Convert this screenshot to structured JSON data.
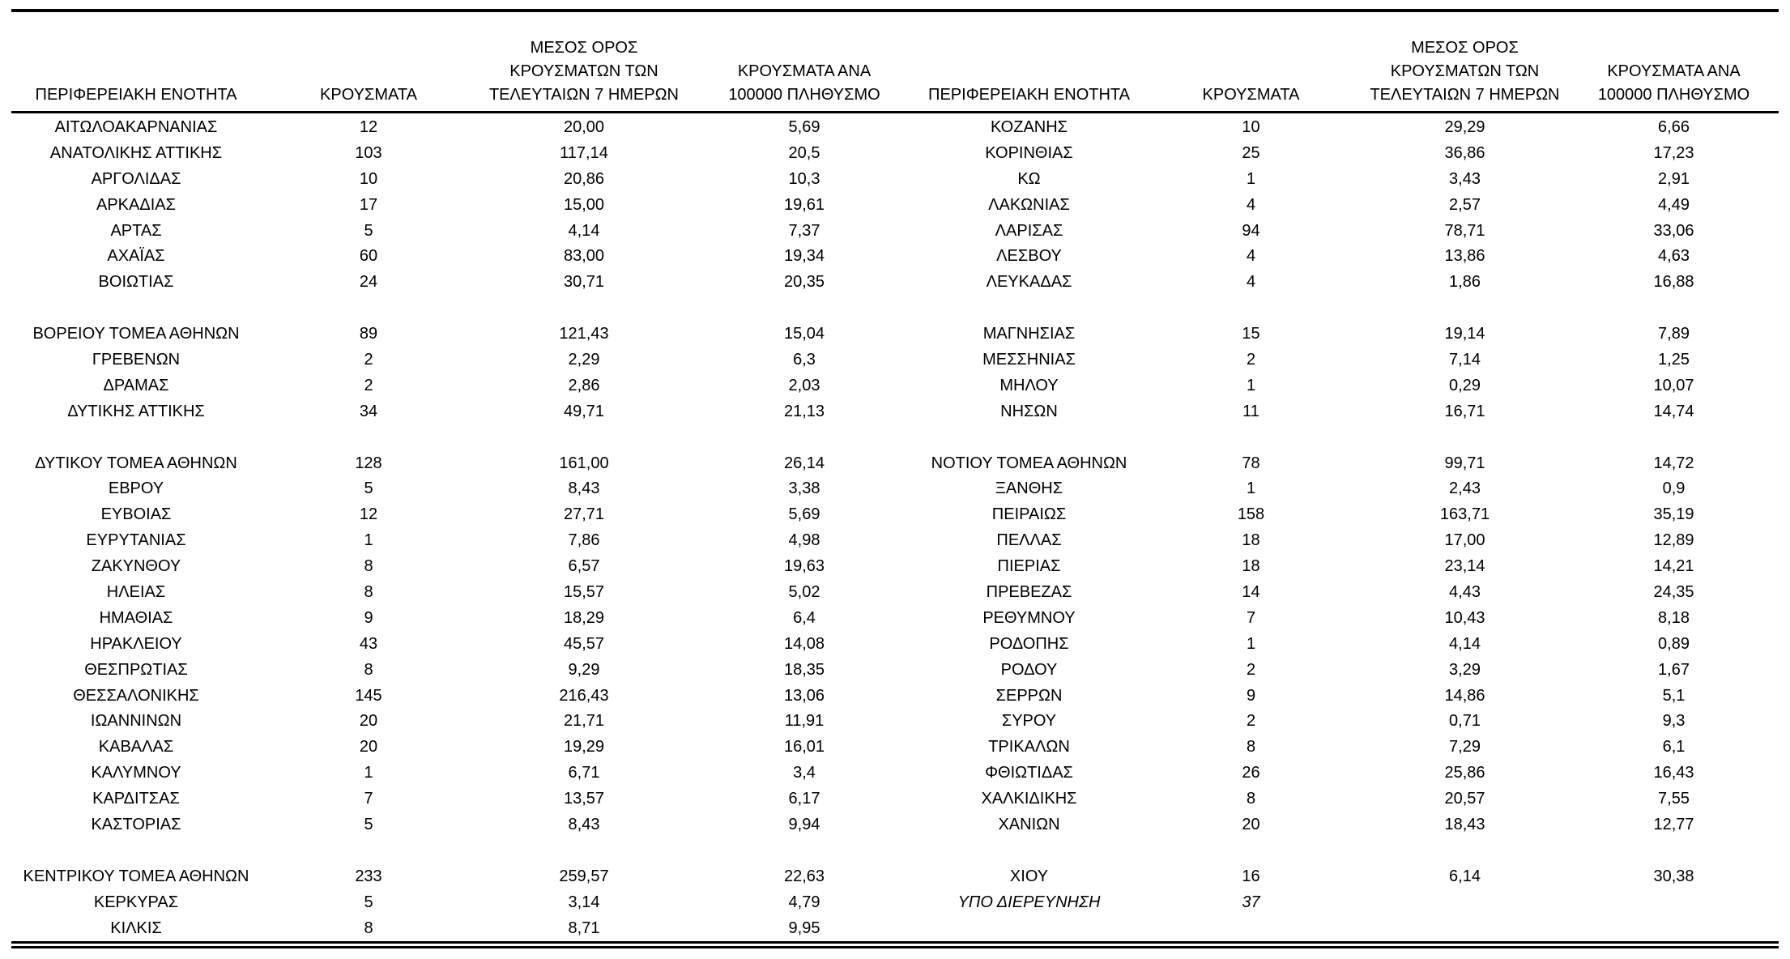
{
  "page": {
    "background_color": "#ffffff",
    "text_color": "#000000"
  },
  "table": {
    "headers": {
      "region": "ΠΕΡΙΦΕΡΕΙΑΚΗ ΕΝΟΤΗΤΑ",
      "cases": "ΚΡΟΥΣΜΑΤΑ",
      "avg7": [
        "ΜΕΣΟΣ ΟΡΟΣ",
        "ΚΡΟΥΣΜΑΤΩΝ ΤΩΝ",
        "ΤΕΛΕΥΤΑΙΩΝ 7 ΗΜΕΡΩΝ"
      ],
      "per100k": [
        "ΚΡΟΥΣΜΑΤΑ ΑΝΑ",
        "100000 ΠΛΗΘΥΣΜΟ"
      ]
    },
    "rows": [
      {
        "left": {
          "region": "ΑΙΤΩΛΟΑΚΑΡΝΑΝΙΑΣ",
          "cases": "12",
          "avg7": "20,00",
          "per100k": "5,69"
        },
        "right": {
          "region": "ΚΟΖΑΝΗΣ",
          "cases": "10",
          "avg7": "29,29",
          "per100k": "6,66"
        }
      },
      {
        "left": {
          "region": "ΑΝΑΤΟΛΙΚΗΣ ΑΤΤΙΚΗΣ",
          "cases": "103",
          "avg7": "117,14",
          "per100k": "20,5"
        },
        "right": {
          "region": "ΚΟΡΙΝΘΙΑΣ",
          "cases": "25",
          "avg7": "36,86",
          "per100k": "17,23"
        }
      },
      {
        "left": {
          "region": "ΑΡΓΟΛΙΔΑΣ",
          "cases": "10",
          "avg7": "20,86",
          "per100k": "10,3"
        },
        "right": {
          "region": "ΚΩ",
          "cases": "1",
          "avg7": "3,43",
          "per100k": "2,91"
        }
      },
      {
        "left": {
          "region": "ΑΡΚΑΔΙΑΣ",
          "cases": "17",
          "avg7": "15,00",
          "per100k": "19,61"
        },
        "right": {
          "region": "ΛΑΚΩΝΙΑΣ",
          "cases": "4",
          "avg7": "2,57",
          "per100k": "4,49"
        }
      },
      {
        "left": {
          "region": "ΑΡΤΑΣ",
          "cases": "5",
          "avg7": "4,14",
          "per100k": "7,37"
        },
        "right": {
          "region": "ΛΑΡΙΣΑΣ",
          "cases": "94",
          "avg7": "78,71",
          "per100k": "33,06"
        }
      },
      {
        "left": {
          "region": "ΑΧΑΪΑΣ",
          "cases": "60",
          "avg7": "83,00",
          "per100k": "19,34"
        },
        "right": {
          "region": "ΛΕΣΒΟΥ",
          "cases": "4",
          "avg7": "13,86",
          "per100k": "4,63"
        }
      },
      {
        "left": {
          "region": "ΒΟΙΩΤΙΑΣ",
          "cases": "24",
          "avg7": "30,71",
          "per100k": "20,35"
        },
        "right": {
          "region": "ΛΕΥΚΑΔΑΣ",
          "cases": "4",
          "avg7": "1,86",
          "per100k": "16,88"
        }
      },
      {
        "blank": true
      },
      {
        "left": {
          "region": "ΒΟΡΕΙΟΥ ΤΟΜΕΑ ΑΘΗΝΩΝ",
          "cases": "89",
          "avg7": "121,43",
          "per100k": "15,04"
        },
        "right": {
          "region": "ΜΑΓΝΗΣΙΑΣ",
          "cases": "15",
          "avg7": "19,14",
          "per100k": "7,89"
        }
      },
      {
        "left": {
          "region": "ΓΡΕΒΕΝΩΝ",
          "cases": "2",
          "avg7": "2,29",
          "per100k": "6,3"
        },
        "right": {
          "region": "ΜΕΣΣΗΝΙΑΣ",
          "cases": "2",
          "avg7": "7,14",
          "per100k": "1,25"
        }
      },
      {
        "left": {
          "region": "ΔΡΑΜΑΣ",
          "cases": "2",
          "avg7": "2,86",
          "per100k": "2,03"
        },
        "right": {
          "region": "ΜΗΛΟΥ",
          "cases": "1",
          "avg7": "0,29",
          "per100k": "10,07"
        }
      },
      {
        "left": {
          "region": "ΔΥΤΙΚΗΣ ΑΤΤΙΚΗΣ",
          "cases": "34",
          "avg7": "49,71",
          "per100k": "21,13"
        },
        "right": {
          "region": "ΝΗΣΩΝ",
          "cases": "11",
          "avg7": "16,71",
          "per100k": "14,74"
        }
      },
      {
        "blank": true
      },
      {
        "left": {
          "region": "ΔΥΤΙΚΟΥ ΤΟΜΕΑ ΑΘΗΝΩΝ",
          "cases": "128",
          "avg7": "161,00",
          "per100k": "26,14"
        },
        "right": {
          "region": "ΝΟΤΙΟΥ ΤΟΜΕΑ ΑΘΗΝΩΝ",
          "cases": "78",
          "avg7": "99,71",
          "per100k": "14,72"
        }
      },
      {
        "left": {
          "region": "ΕΒΡΟΥ",
          "cases": "5",
          "avg7": "8,43",
          "per100k": "3,38"
        },
        "right": {
          "region": "ΞΑΝΘΗΣ",
          "cases": "1",
          "avg7": "2,43",
          "per100k": "0,9"
        }
      },
      {
        "left": {
          "region": "ΕΥΒΟΙΑΣ",
          "cases": "12",
          "avg7": "27,71",
          "per100k": "5,69"
        },
        "right": {
          "region": "ΠΕΙΡΑΙΩΣ",
          "cases": "158",
          "avg7": "163,71",
          "per100k": "35,19"
        }
      },
      {
        "left": {
          "region": "ΕΥΡΥΤΑΝΙΑΣ",
          "cases": "1",
          "avg7": "7,86",
          "per100k": "4,98"
        },
        "right": {
          "region": "ΠΕΛΛΑΣ",
          "cases": "18",
          "avg7": "17,00",
          "per100k": "12,89"
        }
      },
      {
        "left": {
          "region": "ΖΑΚΥΝΘΟΥ",
          "cases": "8",
          "avg7": "6,57",
          "per100k": "19,63"
        },
        "right": {
          "region": "ΠΙΕΡΙΑΣ",
          "cases": "18",
          "avg7": "23,14",
          "per100k": "14,21"
        }
      },
      {
        "left": {
          "region": "ΗΛΕΙΑΣ",
          "cases": "8",
          "avg7": "15,57",
          "per100k": "5,02"
        },
        "right": {
          "region": "ΠΡΕΒΕΖΑΣ",
          "cases": "14",
          "avg7": "4,43",
          "per100k": "24,35"
        }
      },
      {
        "left": {
          "region": "ΗΜΑΘΙΑΣ",
          "cases": "9",
          "avg7": "18,29",
          "per100k": "6,4"
        },
        "right": {
          "region": "ΡΕΘΥΜΝΟΥ",
          "cases": "7",
          "avg7": "10,43",
          "per100k": "8,18"
        }
      },
      {
        "left": {
          "region": "ΗΡΑΚΛΕΙΟΥ",
          "cases": "43",
          "avg7": "45,57",
          "per100k": "14,08"
        },
        "right": {
          "region": "ΡΟΔΟΠΗΣ",
          "cases": "1",
          "avg7": "4,14",
          "per100k": "0,89"
        }
      },
      {
        "left": {
          "region": "ΘΕΣΠΡΩΤΙΑΣ",
          "cases": "8",
          "avg7": "9,29",
          "per100k": "18,35"
        },
        "right": {
          "region": "ΡΟΔΟΥ",
          "cases": "2",
          "avg7": "3,29",
          "per100k": "1,67"
        }
      },
      {
        "left": {
          "region": "ΘΕΣΣΑΛΟΝΙΚΗΣ",
          "cases": "145",
          "avg7": "216,43",
          "per100k": "13,06"
        },
        "right": {
          "region": "ΣΕΡΡΩΝ",
          "cases": "9",
          "avg7": "14,86",
          "per100k": "5,1"
        }
      },
      {
        "left": {
          "region": "ΙΩΑΝΝΙΝΩΝ",
          "cases": "20",
          "avg7": "21,71",
          "per100k": "11,91"
        },
        "right": {
          "region": "ΣΥΡΟΥ",
          "cases": "2",
          "avg7": "0,71",
          "per100k": "9,3"
        }
      },
      {
        "left": {
          "region": "ΚΑΒΑΛΑΣ",
          "cases": "20",
          "avg7": "19,29",
          "per100k": "16,01"
        },
        "right": {
          "region": "ΤΡΙΚΑΛΩΝ",
          "cases": "8",
          "avg7": "7,29",
          "per100k": "6,1"
        }
      },
      {
        "left": {
          "region": "ΚΑΛΥΜΝΟΥ",
          "cases": "1",
          "avg7": "6,71",
          "per100k": "3,4"
        },
        "right": {
          "region": "ΦΘΙΩΤΙΔΑΣ",
          "cases": "26",
          "avg7": "25,86",
          "per100k": "16,43"
        }
      },
      {
        "left": {
          "region": "ΚΑΡΔΙΤΣΑΣ",
          "cases": "7",
          "avg7": "13,57",
          "per100k": "6,17"
        },
        "right": {
          "region": "ΧΑΛΚΙΔΙΚΗΣ",
          "cases": "8",
          "avg7": "20,57",
          "per100k": "7,55"
        }
      },
      {
        "left": {
          "region": "ΚΑΣΤΟΡΙΑΣ",
          "cases": "5",
          "avg7": "8,43",
          "per100k": "9,94"
        },
        "right": {
          "region": "ΧΑΝΙΩΝ",
          "cases": "20",
          "avg7": "18,43",
          "per100k": "12,77"
        }
      },
      {
        "blank": true
      },
      {
        "left": {
          "region": "ΚΕΝΤΡΙΚΟΥ ΤΟΜΕΑ ΑΘΗΝΩΝ",
          "cases": "233",
          "avg7": "259,57",
          "per100k": "22,63"
        },
        "right": {
          "region": "ΧΙΟΥ",
          "cases": "16",
          "avg7": "6,14",
          "per100k": "30,38"
        }
      },
      {
        "left": {
          "region": "ΚΕΡΚΥΡΑΣ",
          "cases": "5",
          "avg7": "3,14",
          "per100k": "4,79"
        },
        "right": {
          "region": "ΥΠΟ ΔΙΕΡΕΥΝΗΣΗ",
          "cases": "37",
          "avg7": "",
          "per100k": "",
          "italic": true
        }
      },
      {
        "left": {
          "region": "ΚΙΛΚΙΣ",
          "cases": "8",
          "avg7": "8,71",
          "per100k": "9,95"
        },
        "right": {
          "region": "",
          "cases": "",
          "avg7": "",
          "per100k": ""
        }
      }
    ]
  }
}
